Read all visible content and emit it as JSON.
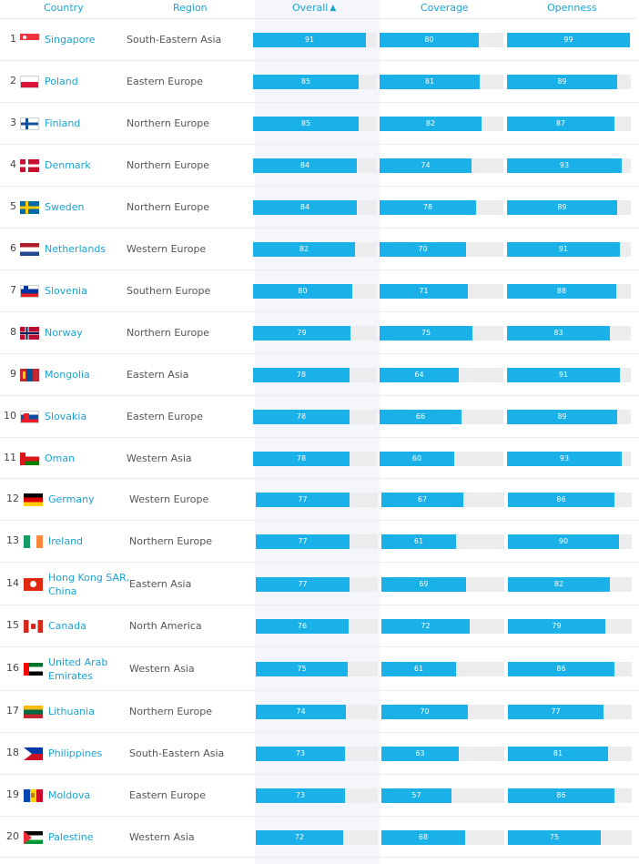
{
  "header": {
    "country": "Country",
    "region": "Region",
    "overall": "Overall",
    "coverage": "Coverage",
    "openness": "Openness",
    "sort_icon": "chevron-up-icon"
  },
  "colors": {
    "accent": "#1aa3d3",
    "bar_fill": "#1ab0e8",
    "bar_track": "#ececec"
  },
  "rows": [
    {
      "rank": "1",
      "country": "Singapore",
      "region": "South-Eastern Asia",
      "overall": 91,
      "coverage": 80,
      "openness": 99,
      "flag_icon": "singapore-flag-icon"
    },
    {
      "rank": "2",
      "country": "Poland",
      "region": "Eastern Europe",
      "overall": 85,
      "coverage": 81,
      "openness": 89,
      "flag_icon": "poland-flag-icon"
    },
    {
      "rank": "3",
      "country": "Finland",
      "region": "Northern Europe",
      "overall": 85,
      "coverage": 82,
      "openness": 87,
      "flag_icon": "finland-flag-icon"
    },
    {
      "rank": "4",
      "country": "Denmark",
      "region": "Northern Europe",
      "overall": 84,
      "coverage": 74,
      "openness": 93,
      "flag_icon": "denmark-flag-icon"
    },
    {
      "rank": "5",
      "country": "Sweden",
      "region": "Northern Europe",
      "overall": 84,
      "coverage": 78,
      "openness": 89,
      "flag_icon": "sweden-flag-icon"
    },
    {
      "rank": "6",
      "country": "Netherlands",
      "region": "Western Europe",
      "overall": 82,
      "coverage": 70,
      "openness": 91,
      "flag_icon": "netherlands-flag-icon"
    },
    {
      "rank": "7",
      "country": "Slovenia",
      "region": "Southern Europe",
      "overall": 80,
      "coverage": 71,
      "openness": 88,
      "flag_icon": "slovenia-flag-icon"
    },
    {
      "rank": "8",
      "country": "Norway",
      "region": "Northern Europe",
      "overall": 79,
      "coverage": 75,
      "openness": 83,
      "flag_icon": "norway-flag-icon"
    },
    {
      "rank": "9",
      "country": "Mongolia",
      "region": "Eastern Asia",
      "overall": 78,
      "coverage": 64,
      "openness": 91,
      "flag_icon": "mongolia-flag-icon"
    },
    {
      "rank": "10",
      "country": "Slovakia",
      "region": "Eastern Europe",
      "overall": 78,
      "coverage": 66,
      "openness": 89,
      "flag_icon": "slovakia-flag-icon"
    },
    {
      "rank": "11",
      "country": "Oman",
      "region": "Western Asia",
      "overall": 78,
      "coverage": 60,
      "openness": 93,
      "flag_icon": "oman-flag-icon"
    },
    {
      "rank": "12",
      "country": "Germany",
      "region": "Western Europe",
      "overall": 77,
      "coverage": 67,
      "openness": 86,
      "flag_icon": "germany-flag-icon"
    },
    {
      "rank": "13",
      "country": "Ireland",
      "region": "Northern Europe",
      "overall": 77,
      "coverage": 61,
      "openness": 90,
      "flag_icon": "ireland-flag-icon"
    },
    {
      "rank": "14",
      "country": "Hong Kong SAR, China",
      "region": "Eastern Asia",
      "overall": 77,
      "coverage": 69,
      "openness": 82,
      "flag_icon": "hong-kong-flag-icon"
    },
    {
      "rank": "15",
      "country": "Canada",
      "region": "North America",
      "overall": 76,
      "coverage": 72,
      "openness": 79,
      "flag_icon": "canada-flag-icon"
    },
    {
      "rank": "16",
      "country": "United Arab Emirates",
      "region": "Western Asia",
      "overall": 75,
      "coverage": 61,
      "openness": 86,
      "flag_icon": "uae-flag-icon"
    },
    {
      "rank": "17",
      "country": "Lithuania",
      "region": "Northern Europe",
      "overall": 74,
      "coverage": 70,
      "openness": 77,
      "flag_icon": "lithuania-flag-icon"
    },
    {
      "rank": "18",
      "country": "Philippines",
      "region": "South-Eastern Asia",
      "overall": 73,
      "coverage": 63,
      "openness": 81,
      "flag_icon": "philippines-flag-icon"
    },
    {
      "rank": "19",
      "country": "Moldova",
      "region": "Eastern Europe",
      "overall": 73,
      "coverage": 57,
      "openness": 86,
      "flag_icon": "moldova-flag-icon"
    },
    {
      "rank": "20",
      "country": "Palestine",
      "region": "Western Asia",
      "overall": 72,
      "coverage": 68,
      "openness": 75,
      "flag_icon": "palestine-flag-icon"
    }
  ]
}
